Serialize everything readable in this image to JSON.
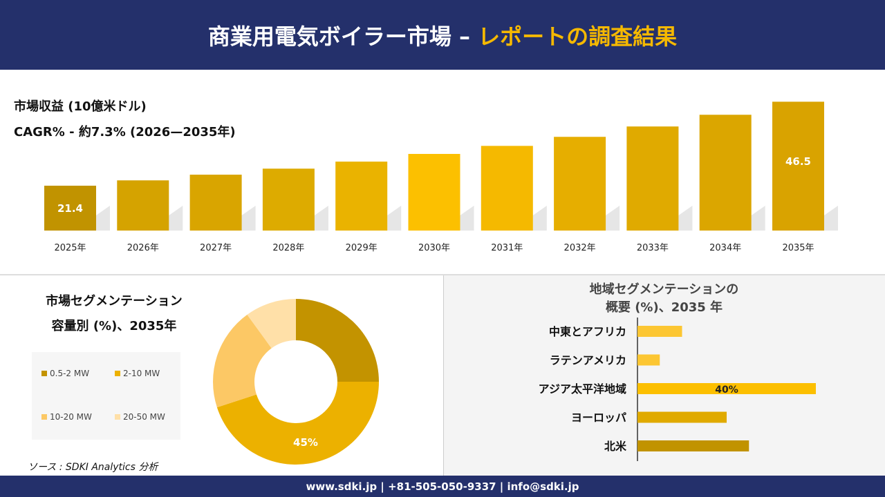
{
  "header": {
    "title_main": "商業用電気ボイラー市場 –",
    "title_highlight": "レポートの調査結果"
  },
  "revenue": {
    "title": "市場収益 (10億米ドル)",
    "cagr": "CAGR% - 約7.3% (2026—2035年)"
  },
  "capacity": {
    "title_line1": "市場セグメンテーション",
    "title_line2": "容量別 (%)、2035年"
  },
  "region": {
    "title_line1": "地域セグメンテーションの",
    "title_line2": "概要 (%)、2035 年"
  },
  "source": "ソース : SDKI Analytics 分析",
  "footer": "www.sdki.jp | +81-505-050-9337 | info@sdki.jp",
  "colors": {
    "navy": "#24306b",
    "accent": "#f5b800"
  },
  "chart_data": [
    {
      "type": "bar",
      "categories": [
        "2025年",
        "2026年",
        "2027年",
        "2028年",
        "2029年",
        "2030年",
        "2031年",
        "2032年",
        "2033年",
        "2034年",
        "2035年"
      ],
      "values": [
        21.4,
        23.0,
        24.7,
        26.5,
        28.6,
        30.9,
        33.3,
        36.0,
        39.1,
        42.6,
        46.5
      ],
      "data_labels": {
        "0": "21.4",
        "10": "46.5"
      },
      "ylim": [
        8,
        48
      ],
      "grid": false,
      "colors": [
        "#c19300",
        "#d5a300",
        "#d9a500",
        "#ddab00",
        "#eab300",
        "#fcc000",
        "#f5b900",
        "#e6ae00",
        "#e0aa00",
        "#dba600",
        "#d9a300"
      ]
    },
    {
      "type": "pie",
      "donut": true,
      "categories": [
        "0.5-2 MW",
        "2-10 MW",
        "10-20 MW",
        "20-50 MW"
      ],
      "values": [
        25,
        45,
        20,
        10
      ],
      "data_labels": {
        "1": "45%"
      },
      "colors": [
        "#c39300",
        "#ecb100",
        "#fcc865",
        "#ffe0a8"
      ],
      "legend": "left"
    },
    {
      "type": "bar",
      "orientation": "horizontal",
      "categories": [
        "中東とアフリカ",
        "ラテンアメリカ",
        "アジア太平洋地域",
        "ヨーロッパ",
        "北米"
      ],
      "values": [
        10,
        5,
        40,
        20,
        25
      ],
      "data_labels": {
        "2": "40%"
      },
      "colors": [
        "#fcc632",
        "#fcc632",
        "#fcbf00",
        "#e0aa00",
        "#c19300"
      ]
    }
  ]
}
